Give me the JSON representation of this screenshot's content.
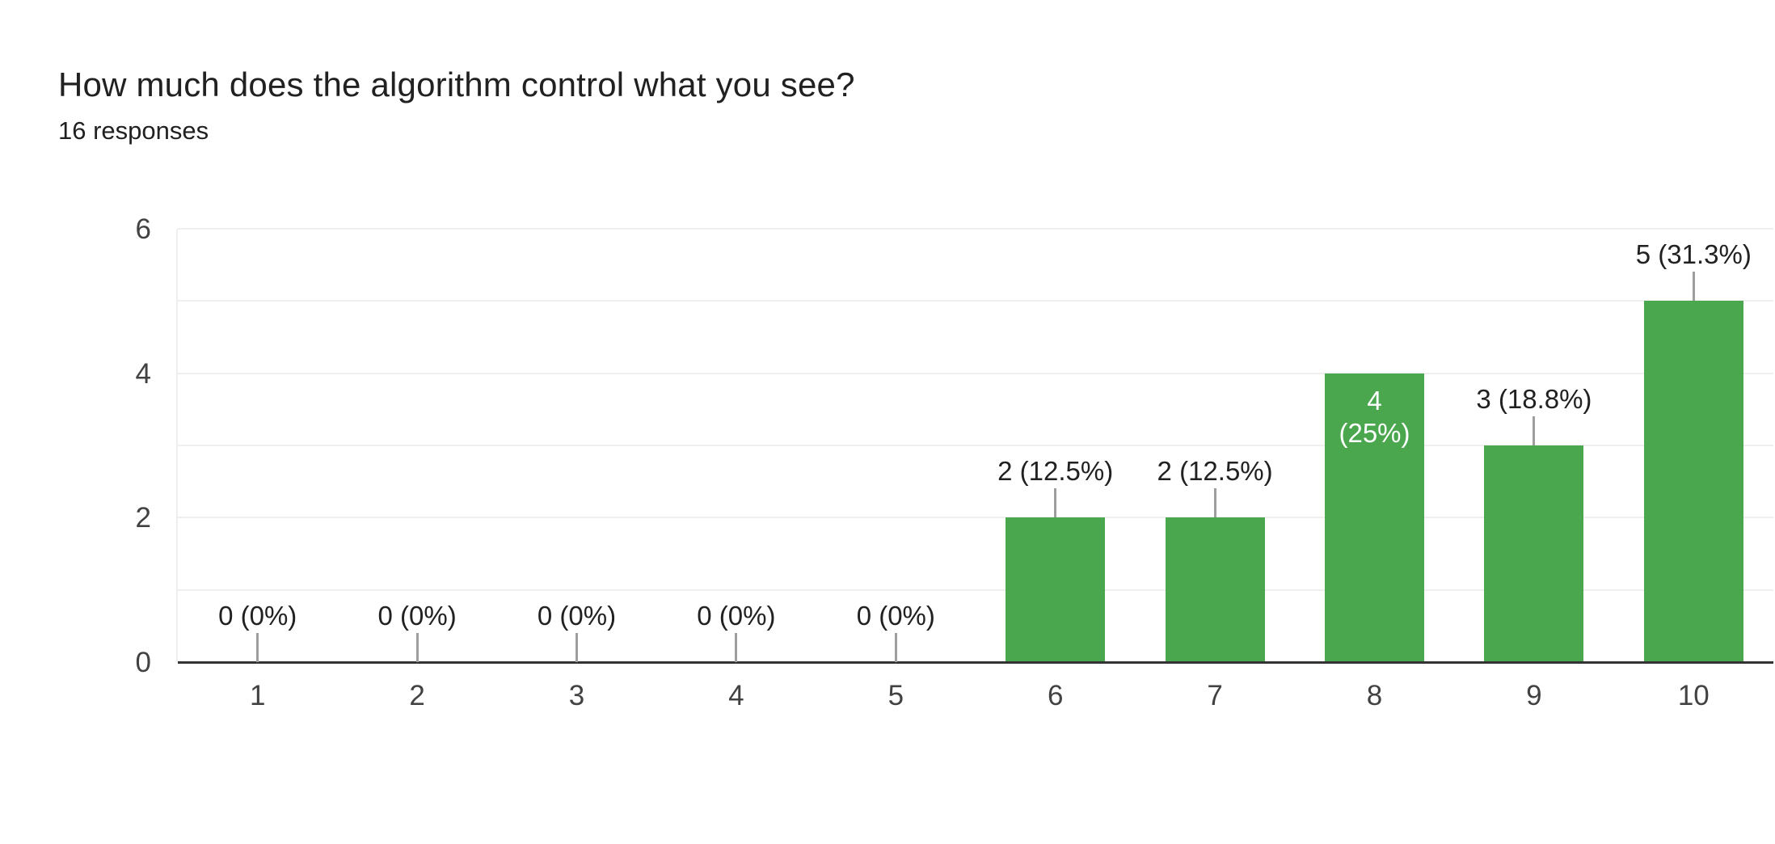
{
  "chart_data": {
    "type": "bar",
    "title": "How much does the algorithm control what you see?",
    "subtitle": "16 responses",
    "total_responses": 16,
    "categories": [
      "1",
      "2",
      "3",
      "4",
      "5",
      "6",
      "7",
      "8",
      "9",
      "10"
    ],
    "values": [
      0,
      0,
      0,
      0,
      0,
      2,
      2,
      4,
      3,
      5
    ],
    "annotations": [
      "0 (0%)",
      "0 (0%)",
      "0 (0%)",
      "0 (0%)",
      "0 (0%)",
      "2 (12.5%)",
      "2 (12.5%)",
      "4 (25%)",
      "3 (18.8%)",
      "5 (31.3%)"
    ],
    "inside_annotation": {
      "index": 7,
      "lines": [
        "4",
        "(25%)"
      ]
    },
    "xlabel": "",
    "ylabel": "",
    "ylim": [
      0,
      6
    ],
    "yticks": [
      0,
      2,
      4,
      6
    ],
    "gridlines": [
      1,
      2,
      3,
      4,
      5,
      6
    ],
    "grid": true,
    "legend": "none",
    "colors": {
      "bar": "#4aa74e",
      "gridline": "#efefef",
      "axis_line": "#333333",
      "stem": "#9e9e9e",
      "tick_label": "#424242",
      "annotation": "#212121",
      "annotation_inside": "#ffffff",
      "title": "#212121",
      "background": "#ffffff"
    }
  }
}
